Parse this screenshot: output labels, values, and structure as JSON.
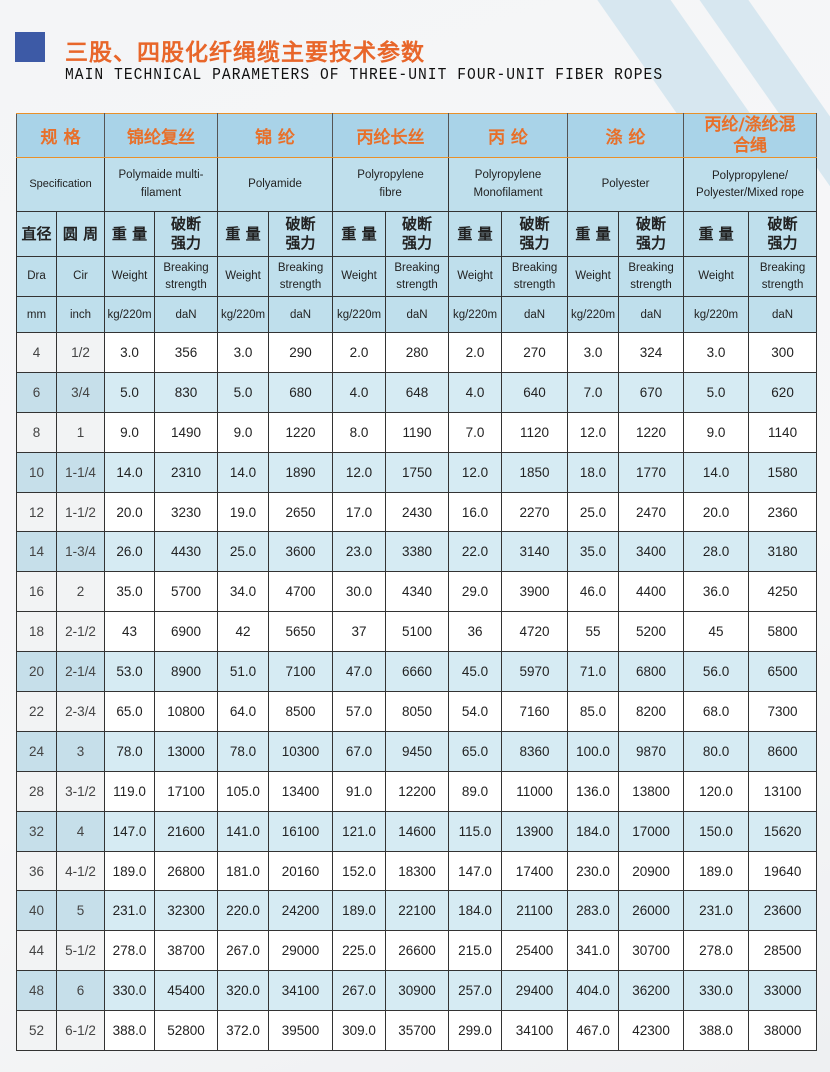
{
  "title_cn": "三股、四股化纤绳缆主要技术参数",
  "title_en": "MAIN TECHNICAL PARAMETERS OF THREE-UNIT FOUR-UNIT FIBER ROPES",
  "colors": {
    "accent": "#e8662a",
    "header_bg": "#a9d3e8",
    "alt_row": "#d6ebf3",
    "marker": "#3d5aa6"
  },
  "header": {
    "spec_cn": "规 格",
    "spec_en": "Specification",
    "materials": [
      {
        "cn": "锦纶复丝",
        "en": "Polymaide multi-filament"
      },
      {
        "cn": "锦 纶",
        "en": "Polyamide"
      },
      {
        "cn": "丙纶长丝",
        "en": "Polyropylene fibre"
      },
      {
        "cn": "丙 纶",
        "en": "Polyropylene Monofilament"
      },
      {
        "cn": "涤 纶",
        "en": "Polyester"
      },
      {
        "cn": "丙纶/涤纶混合绳",
        "en": "Polypropylene/ Polyester/Mixed rope"
      }
    ],
    "dia_cn": "直径",
    "cir_cn": "圆 周",
    "weight_cn": "重 量",
    "break_cn": "破断强力",
    "dia_en": "Dra",
    "cir_en": "Cir",
    "weight_en": "Weight",
    "break_en": "Breaking strength",
    "dia_unit": "mm",
    "cir_unit": "inch",
    "weight_unit": "kg/220m",
    "break_unit": "daN"
  },
  "rows": [
    [
      "4",
      "1/2",
      "3.0",
      "356",
      "3.0",
      "290",
      "2.0",
      "280",
      "2.0",
      "270",
      "3.0",
      "324",
      "3.0",
      "300"
    ],
    [
      "6",
      "3/4",
      "5.0",
      "830",
      "5.0",
      "680",
      "4.0",
      "648",
      "4.0",
      "640",
      "7.0",
      "670",
      "5.0",
      "620"
    ],
    [
      "8",
      "1",
      "9.0",
      "1490",
      "9.0",
      "1220",
      "8.0",
      "1190",
      "7.0",
      "1120",
      "12.0",
      "1220",
      "9.0",
      "1140"
    ],
    [
      "10",
      "1-1/4",
      "14.0",
      "2310",
      "14.0",
      "1890",
      "12.0",
      "1750",
      "12.0",
      "1850",
      "18.0",
      "1770",
      "14.0",
      "1580"
    ],
    [
      "12",
      "1-1/2",
      "20.0",
      "3230",
      "19.0",
      "2650",
      "17.0",
      "2430",
      "16.0",
      "2270",
      "25.0",
      "2470",
      "20.0",
      "2360"
    ],
    [
      "14",
      "1-3/4",
      "26.0",
      "4430",
      "25.0",
      "3600",
      "23.0",
      "3380",
      "22.0",
      "3140",
      "35.0",
      "3400",
      "28.0",
      "3180"
    ],
    [
      "16",
      "2",
      "35.0",
      "5700",
      "34.0",
      "4700",
      "30.0",
      "4340",
      "29.0",
      "3900",
      "46.0",
      "4400",
      "36.0",
      "4250"
    ],
    [
      "18",
      "2-1/2",
      "43",
      "6900",
      "42",
      "5650",
      "37",
      "5100",
      "36",
      "4720",
      "55",
      "5200",
      "45",
      "5800"
    ],
    [
      "20",
      "2-1/4",
      "53.0",
      "8900",
      "51.0",
      "7100",
      "47.0",
      "6660",
      "45.0",
      "5970",
      "71.0",
      "6800",
      "56.0",
      "6500"
    ],
    [
      "22",
      "2-3/4",
      "65.0",
      "10800",
      "64.0",
      "8500",
      "57.0",
      "8050",
      "54.0",
      "7160",
      "85.0",
      "8200",
      "68.0",
      "7300"
    ],
    [
      "24",
      "3",
      "78.0",
      "13000",
      "78.0",
      "10300",
      "67.0",
      "9450",
      "65.0",
      "8360",
      "100.0",
      "9870",
      "80.0",
      "8600"
    ],
    [
      "28",
      "3-1/2",
      "119.0",
      "17100",
      "105.0",
      "13400",
      "91.0",
      "12200",
      "89.0",
      "11000",
      "136.0",
      "13800",
      "120.0",
      "13100"
    ],
    [
      "32",
      "4",
      "147.0",
      "21600",
      "141.0",
      "16100",
      "121.0",
      "14600",
      "115.0",
      "13900",
      "184.0",
      "17000",
      "150.0",
      "15620"
    ],
    [
      "36",
      "4-1/2",
      "189.0",
      "26800",
      "181.0",
      "20160",
      "152.0",
      "18300",
      "147.0",
      "17400",
      "230.0",
      "20900",
      "189.0",
      "19640"
    ],
    [
      "40",
      "5",
      "231.0",
      "32300",
      "220.0",
      "24200",
      "189.0",
      "22100",
      "184.0",
      "21100",
      "283.0",
      "26000",
      "231.0",
      "23600"
    ],
    [
      "44",
      "5-1/2",
      "278.0",
      "38700",
      "267.0",
      "29000",
      "225.0",
      "26600",
      "215.0",
      "25400",
      "341.0",
      "30700",
      "278.0",
      "28500"
    ],
    [
      "48",
      "6",
      "330.0",
      "45400",
      "320.0",
      "34100",
      "267.0",
      "30900",
      "257.0",
      "29400",
      "404.0",
      "36200",
      "330.0",
      "33000"
    ],
    [
      "52",
      "6-1/2",
      "388.0",
      "52800",
      "372.0",
      "39500",
      "309.0",
      "35700",
      "299.0",
      "34100",
      "467.0",
      "42300",
      "388.0",
      "38000"
    ]
  ]
}
